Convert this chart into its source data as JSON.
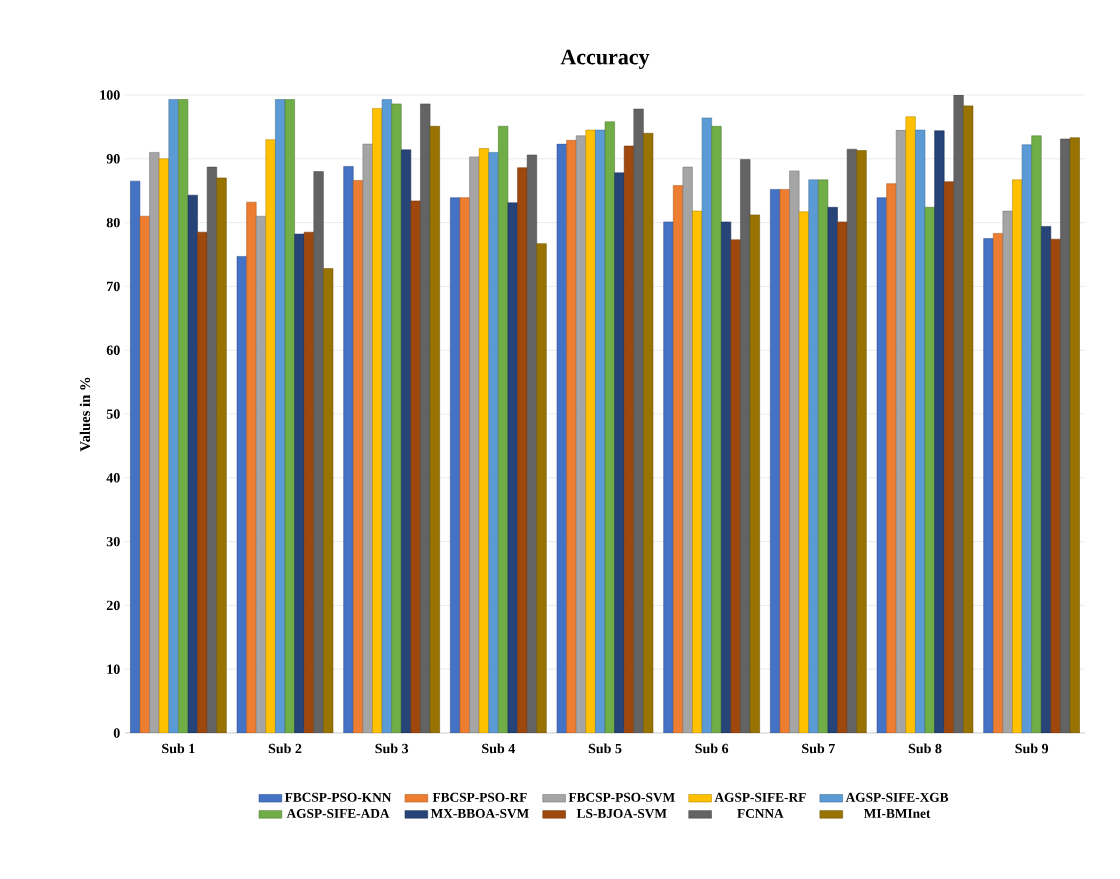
{
  "chart_data": {
    "type": "bar",
    "title": "Accuracy",
    "ylabel": "Values in %",
    "categories": [
      "Sub 1",
      "Sub 2",
      "Sub 3",
      "Sub 4",
      "Sub 5",
      "Sub 6",
      "Sub 7",
      "Sub 8",
      "Sub 9"
    ],
    "series": [
      {
        "name": "FBCSP-PSO-KNN",
        "color": "#4472c4",
        "values": [
          86.5,
          74.7,
          88.8,
          83.9,
          92.3,
          80.1,
          85.2,
          83.9,
          77.5
        ]
      },
      {
        "name": "FBCSP-PSO-RF",
        "color": "#ed7d31",
        "values": [
          81,
          83.2,
          86.6,
          83.9,
          92.9,
          85.8,
          85.2,
          86.1,
          78.3
        ]
      },
      {
        "name": "FBCSP-PSO-SVM",
        "color": "#a5a5a5",
        "values": [
          91,
          81,
          92.3,
          90.3,
          93.6,
          88.7,
          88.1,
          94.5,
          81.8
        ]
      },
      {
        "name": "AGSP-SIFE-RF",
        "color": "#ffc000",
        "values": [
          90,
          93,
          97.9,
          91.6,
          94.5,
          81.8,
          81.7,
          96.6,
          86.7
        ]
      },
      {
        "name": "AGSP-SIFE-XGB",
        "color": "#5b9bd5",
        "values": [
          99.3,
          99.3,
          99.3,
          91,
          94.5,
          96.4,
          86.7,
          94.5,
          92.2
        ]
      },
      {
        "name": "AGSP-SIFE-ADA",
        "color": "#70ad47",
        "values": [
          99.3,
          99.3,
          98.6,
          95.1,
          95.8,
          95.1,
          86.7,
          82.4,
          93.6
        ]
      },
      {
        "name": "MX-BBOA-SVM",
        "color": "#264478",
        "values": [
          84.3,
          78.2,
          91.4,
          83.1,
          87.8,
          80.1,
          82.4,
          94.4,
          79.4
        ]
      },
      {
        "name": "LS-BJOA-SVM",
        "color": "#9e480e",
        "values": [
          78.5,
          78.5,
          83.4,
          88.6,
          92,
          77.3,
          80.1,
          86.4,
          77.4
        ]
      },
      {
        "name": "FCNNA",
        "color": "#636363",
        "values": [
          88.7,
          88,
          98.6,
          90.6,
          97.8,
          89.9,
          91.5,
          100,
          93.1
        ]
      },
      {
        "name": "MI-BMInet",
        "color": "#997300",
        "values": [
          87,
          72.8,
          95.1,
          76.7,
          94,
          81.2,
          91.3,
          98.3,
          93.3
        ]
      }
    ],
    "ylim": [
      0,
      100
    ],
    "yticks": [
      0,
      10,
      20,
      30,
      40,
      50,
      60,
      70,
      80,
      90,
      100
    ],
    "grid": "y",
    "legend": "bottom"
  }
}
